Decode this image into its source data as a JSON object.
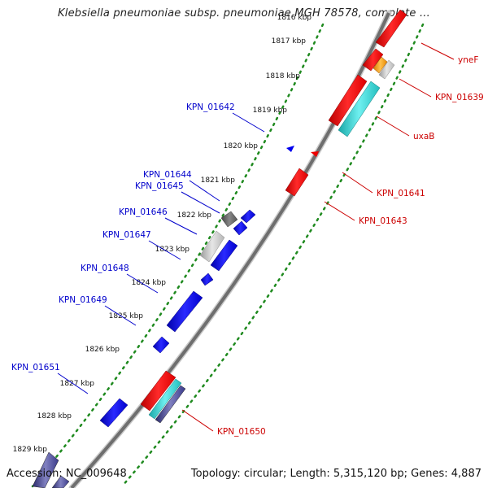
{
  "title": "Klebsiella pneumoniae subsp. pneumoniae MGH 78578, complete ...",
  "footer": {
    "accession": "Accession: NC_009648",
    "summary": "Topology: circular; Length: 5,315,120 bp; Genes: 4,887"
  },
  "colors": {
    "backbone": "#7f7f7f",
    "tick_dots": "#1f8a1f",
    "reverse_strand": "#0000ee",
    "forward_strand": "#ee0000",
    "label_reverse": "#0000cc",
    "label_forward": "#cc0000",
    "gray_gene": "#bdbdbd",
    "cyan_gene": "#2ecccc",
    "orange_gene": "#ff9900",
    "navy_gene": "#3a3a8a"
  },
  "ticks": [
    {
      "label": "1816 kbp"
    },
    {
      "label": "1817 kbp"
    },
    {
      "label": "1818 kbp"
    },
    {
      "label": "1819 kbp"
    },
    {
      "label": "1820 kbp"
    },
    {
      "label": "1821 kbp"
    },
    {
      "label": "1822 kbp"
    },
    {
      "label": "1823 kbp"
    },
    {
      "label": "1824 kbp"
    },
    {
      "label": "1825 kbp"
    },
    {
      "label": "1826 kbp"
    },
    {
      "label": "1827 kbp"
    },
    {
      "label": "1828 kbp"
    },
    {
      "label": "1829 kbp"
    }
  ],
  "gene_labels": {
    "reverse": [
      "KPN_01642",
      "KPN_01644",
      "KPN_01645",
      "KPN_01646",
      "KPN_01647",
      "KPN_01648",
      "KPN_01649",
      "KPN_01651"
    ],
    "forward": [
      "yneF",
      "KPN_01639",
      "uxaB",
      "KPN_01641",
      "KPN_01643",
      "KPN_01650"
    ]
  }
}
